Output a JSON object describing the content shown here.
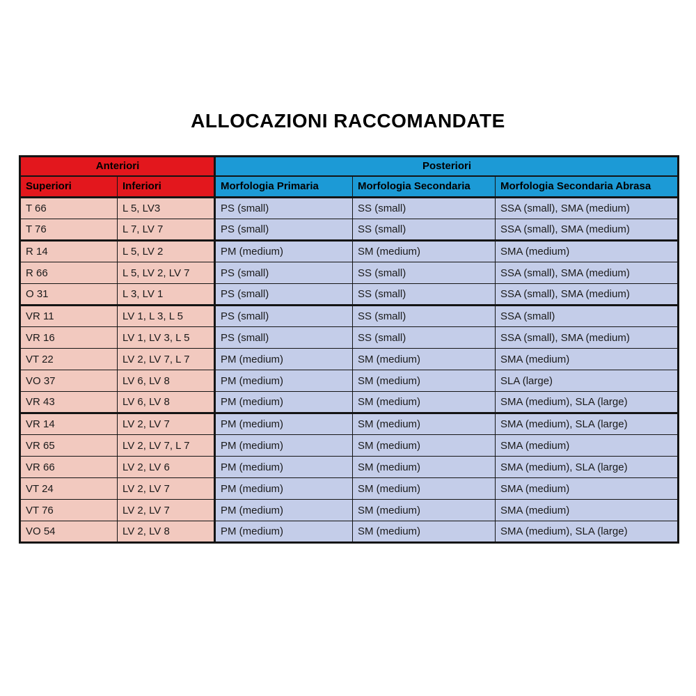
{
  "page": {
    "title": "ALLOCAZIONI RACCOMANDATE"
  },
  "table": {
    "colors": {
      "header_red": "#e3171d",
      "header_blue": "#1c9ad6",
      "row_pink": "#f2c9bf",
      "row_lavender": "#c4cde9",
      "border": "#141414"
    },
    "sections": [
      {
        "label": "Anteriori",
        "colspan": 2
      },
      {
        "label": "Posteriori",
        "colspan": 3
      }
    ],
    "columns": [
      {
        "label": "Superiori"
      },
      {
        "label": "Inferiori"
      },
      {
        "label": "Morfologia Primaria"
      },
      {
        "label": "Morfologia Secondaria"
      },
      {
        "label": "Morfologia Secondaria Abrasa"
      }
    ],
    "rows": [
      {
        "cells": [
          "T 66",
          "L 5, LV3",
          "PS (small)",
          "SS (small)",
          "SSA (small), SMA (medium)"
        ]
      },
      {
        "cells": [
          "T 76",
          "L 7, LV 7",
          "PS (small)",
          "SS (small)",
          "SSA (small), SMA (medium)"
        ]
      },
      {
        "cells": [
          "R 14",
          "L 5, LV 2",
          "PM (medium)",
          "SM (medium)",
          "SMA (medium)"
        ]
      },
      {
        "cells": [
          "R 66",
          "L 5, LV 2, LV 7",
          "PS (small)",
          "SS (small)",
          "SSA (small), SMA (medium)"
        ]
      },
      {
        "cells": [
          "O 31",
          "L 3, LV 1",
          "PS (small)",
          "SS (small)",
          "SSA (small), SMA (medium)"
        ]
      },
      {
        "cells": [
          "VR 11",
          "LV 1, L 3, L 5",
          "PS (small)",
          "SS (small)",
          "SSA (small)"
        ]
      },
      {
        "cells": [
          "VR 16",
          "LV 1, LV 3, L 5",
          "PS (small)",
          "SS (small)",
          "SSA (small), SMA (medium)"
        ]
      },
      {
        "cells": [
          "VT 22",
          "LV 2, LV 7, L 7",
          "PM (medium)",
          "SM (medium)",
          "SMA (medium)"
        ]
      },
      {
        "cells": [
          "VO 37",
          "LV 6, LV 8",
          "PM (medium)",
          "SM (medium)",
          "SLA (large)"
        ]
      },
      {
        "cells": [
          "VR 43",
          "LV 6, LV 8",
          "PM (medium)",
          "SM (medium)",
          "SMA (medium), SLA (large)"
        ]
      },
      {
        "cells": [
          "VR 14",
          "LV 2, LV 7",
          "PM (medium)",
          "SM (medium)",
          "SMA (medium), SLA (large)"
        ]
      },
      {
        "cells": [
          "VR 65",
          "LV 2, LV 7, L 7",
          "PM (medium)",
          "SM (medium)",
          "SMA (medium)"
        ]
      },
      {
        "cells": [
          "VR 66",
          "LV 2, LV 6",
          "PM (medium)",
          "SM (medium)",
          "SMA (medium), SLA (large)"
        ]
      },
      {
        "cells": [
          "VT 24",
          "LV 2, LV 7",
          "PM (medium)",
          "SM (medium)",
          "SMA (medium)"
        ]
      },
      {
        "cells": [
          "VT 76",
          "LV 2, LV 7",
          "PM (medium)",
          "SM (medium)",
          "SMA (medium)"
        ]
      },
      {
        "cells": [
          "VO 54",
          "LV 2, LV 8",
          "PM (medium)",
          "SM (medium)",
          "SMA (medium), SLA (large)"
        ]
      }
    ]
  }
}
